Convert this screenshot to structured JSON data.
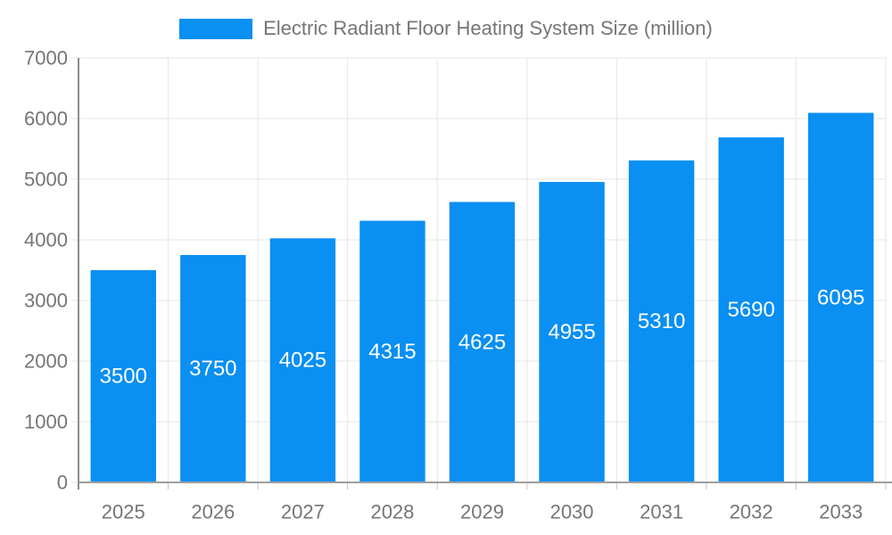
{
  "legend": {
    "label": "Electric Radiant Floor Heating System Size (million)",
    "swatch_color": "#0a8ff2"
  },
  "chart_data": {
    "type": "bar",
    "title": "Electric Radiant Floor Heating System Size (million)",
    "categories": [
      "2025",
      "2026",
      "2027",
      "2028",
      "2029",
      "2030",
      "2031",
      "2032",
      "2033"
    ],
    "values": [
      3500,
      3750,
      4025,
      4315,
      4625,
      4955,
      5310,
      5690,
      6095
    ],
    "xlabel": "",
    "ylabel": "",
    "ylim": [
      0,
      7000
    ],
    "ytick_interval": 1000,
    "yticks": [
      0,
      1000,
      2000,
      3000,
      4000,
      5000,
      6000,
      7000
    ],
    "grid": true,
    "legend_position": "top",
    "value_labels": "inside-middle",
    "colors": {
      "bar": "#0a8ff2",
      "value_label": "#ffffff",
      "axis_text": "#757575",
      "gridline": "#e6e6e6",
      "axis_line": "#9e9e9e",
      "tick": "#c4c4c4"
    }
  }
}
